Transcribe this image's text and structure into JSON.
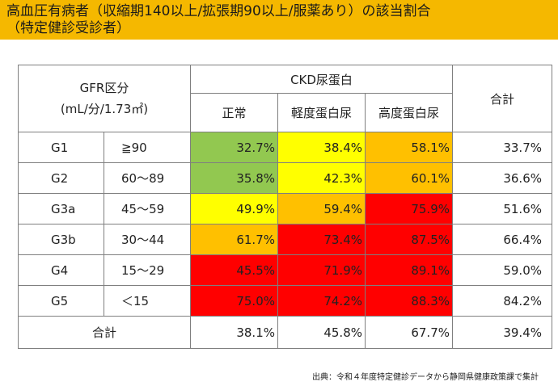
{
  "title": {
    "line1": "高血圧有病者（収縮期140以上/拡張期90以上/服薬あり）の該当割合",
    "line2": "（特定健診受診者）"
  },
  "table": {
    "gfr_header_line1": "GFR区分",
    "gfr_header_line2": "(mL/分/1.73㎡)",
    "ckd_header": "CKD尿蛋白",
    "total_header": "合計",
    "protein_levels": [
      "正常",
      "軽度蛋白尿",
      "高度蛋白尿"
    ],
    "rows": [
      {
        "grade": "G1",
        "range": "≧90",
        "values": [
          "32.7%",
          "38.4%",
          "58.1%"
        ],
        "total": "33.7%",
        "colors": [
          "#92c850",
          "#ffff00",
          "#ffc000"
        ]
      },
      {
        "grade": "G2",
        "range": "60～89",
        "values": [
          "35.8%",
          "42.3%",
          "60.1%"
        ],
        "total": "36.6%",
        "colors": [
          "#92c850",
          "#ffff00",
          "#ffc000"
        ]
      },
      {
        "grade": "G3a",
        "range": "45～59",
        "values": [
          "49.9%",
          "59.4%",
          "75.9%"
        ],
        "total": "51.6%",
        "colors": [
          "#ffff00",
          "#ffc000",
          "#ff0000"
        ]
      },
      {
        "grade": "G3b",
        "range": "30～44",
        "values": [
          "61.7%",
          "73.4%",
          "87.5%"
        ],
        "total": "66.4%",
        "colors": [
          "#ffc000",
          "#ff0000",
          "#ff0000"
        ]
      },
      {
        "grade": "G4",
        "range": "15～29",
        "values": [
          "45.5%",
          "71.9%",
          "89.1%"
        ],
        "total": "59.0%",
        "colors": [
          "#ff0000",
          "#ff0000",
          "#ff0000"
        ]
      },
      {
        "grade": "G5",
        "range": "＜15",
        "values": [
          "75.0%",
          "74.2%",
          "88.3%"
        ],
        "total": "84.2%",
        "colors": [
          "#ff0000",
          "#ff0000",
          "#ff0000"
        ]
      }
    ],
    "total_row": {
      "label": "合計",
      "values": [
        "38.1%",
        "45.8%",
        "67.7%"
      ],
      "total": "39.4%"
    }
  },
  "source": "出典：令和４年度特定健診データから静岡県健康政策課で集計"
}
